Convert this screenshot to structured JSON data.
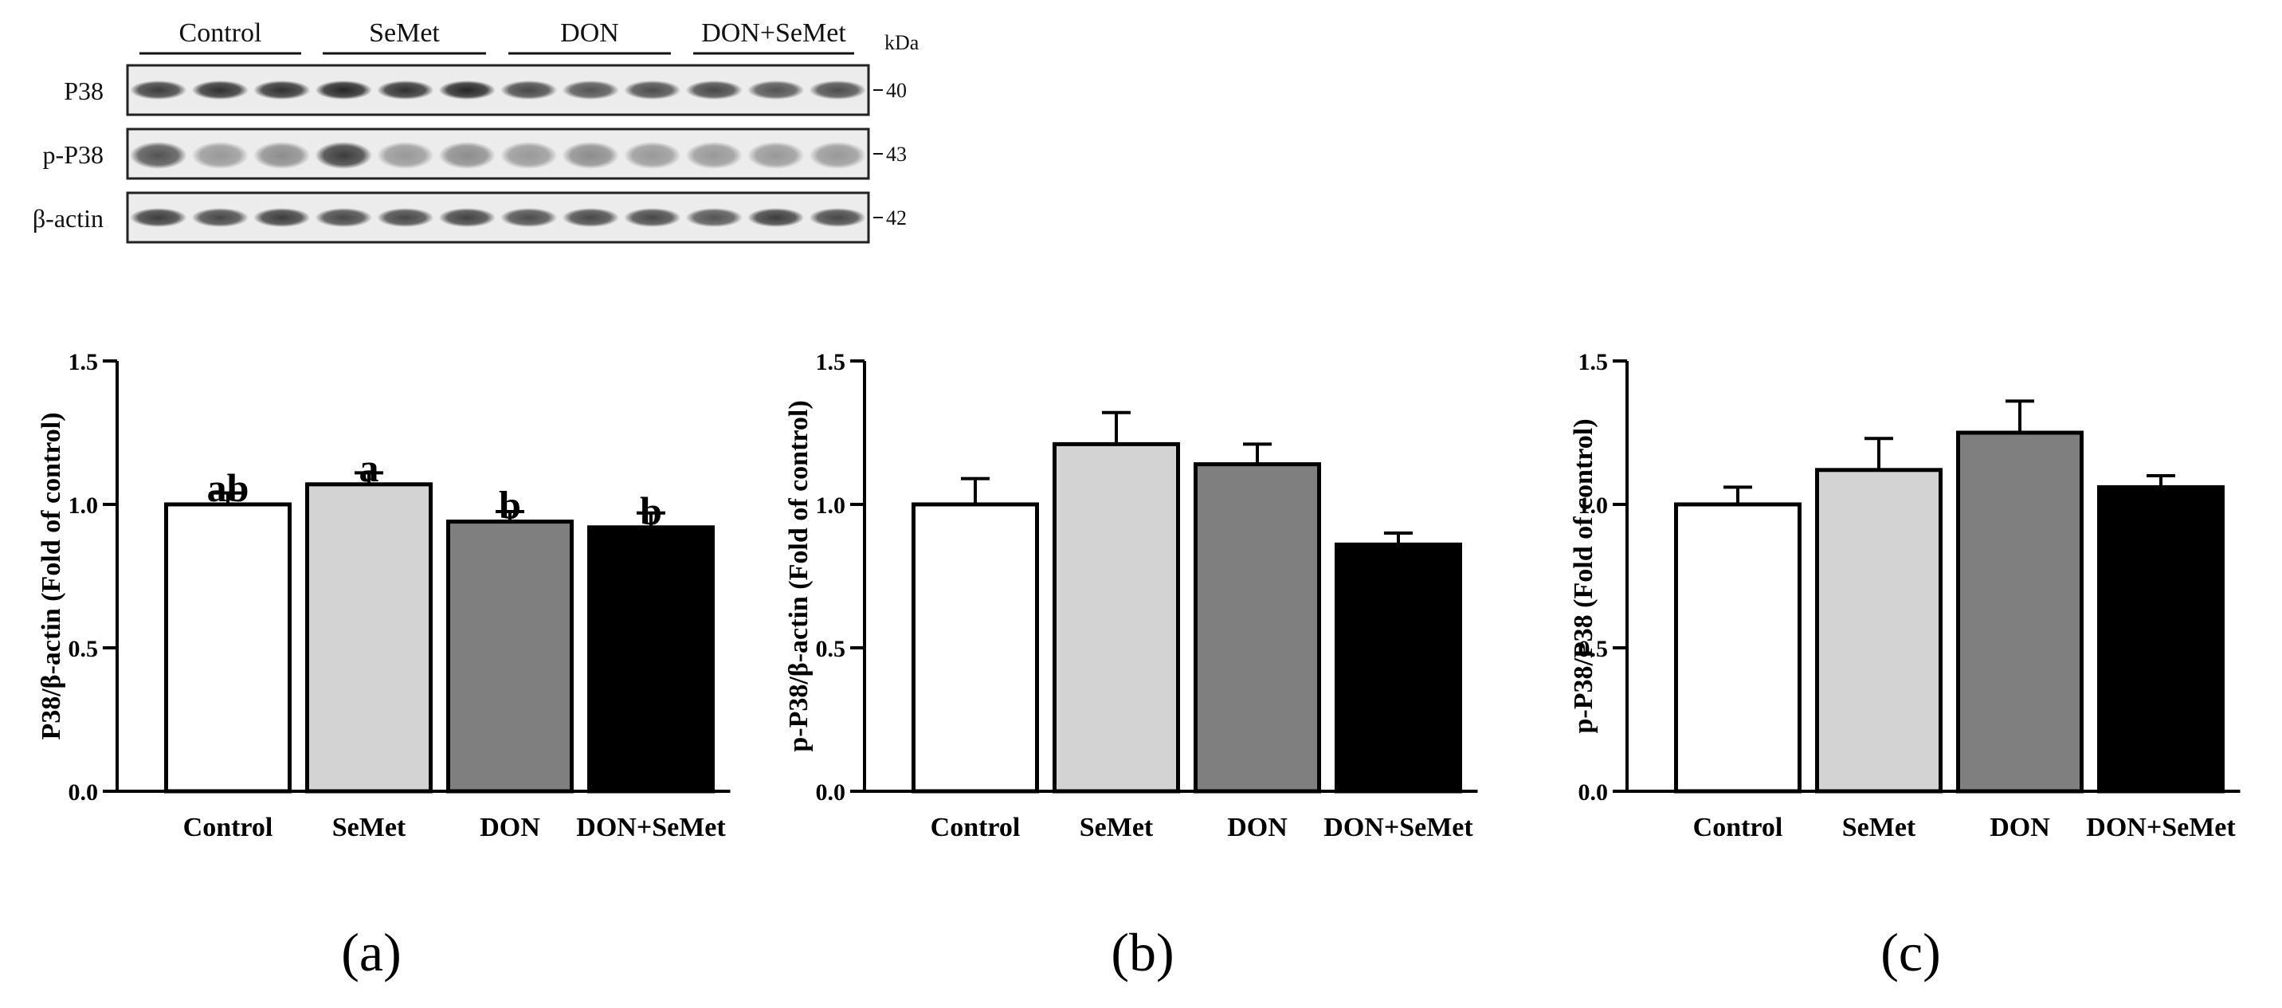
{
  "blot": {
    "groups": [
      "Control",
      "SeMet",
      "DON",
      "DON+SeMet"
    ],
    "kda_label": "kDa",
    "rows": [
      {
        "label": "P38",
        "kda": "40",
        "band_darkness": [
          0.85,
          0.9,
          0.9,
          0.95,
          0.9,
          0.95,
          0.8,
          0.75,
          0.78,
          0.8,
          0.75,
          0.78
        ]
      },
      {
        "label": "p-P38",
        "kda": "43",
        "band_darkness": [
          0.75,
          0.45,
          0.5,
          0.85,
          0.45,
          0.5,
          0.45,
          0.5,
          0.45,
          0.45,
          0.45,
          0.45
        ]
      },
      {
        "label": "β-actin",
        "kda": "42",
        "band_darkness": [
          0.85,
          0.8,
          0.85,
          0.8,
          0.8,
          0.82,
          0.78,
          0.8,
          0.8,
          0.75,
          0.85,
          0.8
        ]
      }
    ]
  },
  "chart_data": [
    {
      "type": "bar",
      "panel_label": "(a)",
      "categories": [
        "Control",
        "SeMet",
        "DON",
        "DON+SeMet"
      ],
      "values": [
        1.0,
        1.07,
        0.94,
        0.92
      ],
      "errors": [
        0.04,
        0.04,
        0.035,
        0.05
      ],
      "significance": [
        "ab",
        "a",
        "b",
        "b"
      ],
      "bar_colors": [
        "#ffffff",
        "#d3d3d3",
        "#7f7f7f",
        "#000000"
      ],
      "ylabel": "P38/β-actin (Fold of control)",
      "ylim": [
        0,
        1.5
      ],
      "yticks": [
        "0.0",
        "0.5",
        "1.0",
        "1.5"
      ]
    },
    {
      "type": "bar",
      "panel_label": "(b)",
      "categories": [
        "Control",
        "SeMet",
        "DON",
        "DON+SeMet"
      ],
      "values": [
        1.0,
        1.21,
        1.14,
        0.86
      ],
      "errors": [
        0.09,
        0.11,
        0.07,
        0.04
      ],
      "significance": [
        "",
        "",
        "",
        ""
      ],
      "bar_colors": [
        "#ffffff",
        "#d3d3d3",
        "#7f7f7f",
        "#000000"
      ],
      "ylabel": "p-P38/β-actin (Fold of control)",
      "ylim": [
        0,
        1.5
      ],
      "yticks": [
        "0.0",
        "0.5",
        "1.0",
        "1.5"
      ]
    },
    {
      "type": "bar",
      "panel_label": "(c)",
      "categories": [
        "Control",
        "SeMet",
        "DON",
        "DON+SeMet"
      ],
      "values": [
        1.0,
        1.12,
        1.25,
        1.06
      ],
      "errors": [
        0.06,
        0.11,
        0.11,
        0.04
      ],
      "significance": [
        "",
        "",
        "",
        ""
      ],
      "bar_colors": [
        "#ffffff",
        "#d3d3d3",
        "#7f7f7f",
        "#000000"
      ],
      "ylabel": "p-P38/P38 (Fold of control)",
      "ylim": [
        0,
        1.5
      ],
      "yticks": [
        "0.0",
        "0.5",
        "1.0",
        "1.5"
      ]
    }
  ]
}
